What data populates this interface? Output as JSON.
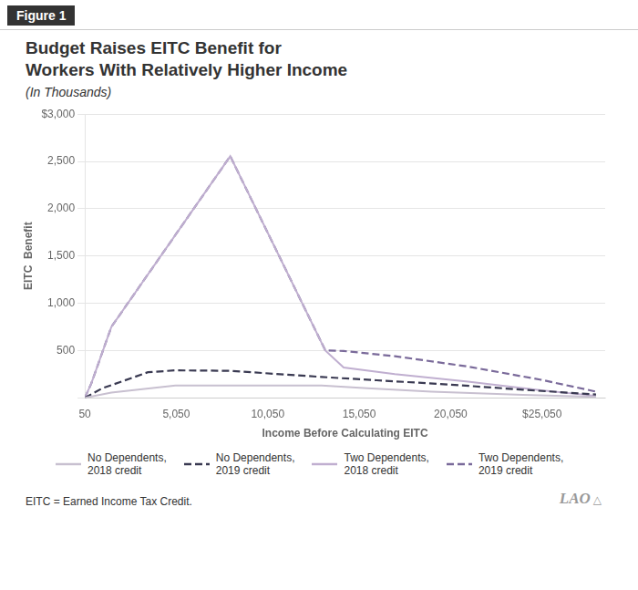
{
  "chart_data": {
    "type": "line",
    "title": "Budget Raises EITC Benefit for\nWorkers With Relatively Higher Income",
    "subtitle": "(In Thousands)",
    "xlabel": "Income Before Calculating EITC",
    "ylabel": "EITC  Benefit",
    "annotations": [
      "Figure 1",
      "EITC = Earned Income Tax Credit.",
      "LAO",
      "△"
    ],
    "xlim": [
      50,
      28500
    ],
    "ylim": [
      0,
      3000
    ],
    "xticks": [
      50,
      {
        "value": 5050,
        "label": "5,050"
      },
      {
        "value": 10050,
        "label": "10,050"
      },
      {
        "value": 15050,
        "label": "15,050"
      },
      {
        "value": 20050,
        "label": "20,050"
      },
      {
        "value": 25050,
        "label": "$25,050"
      }
    ],
    "yticks": [
      {
        "value": 0,
        "label": ""
      },
      500,
      {
        "value": 1000,
        "label": "1,000"
      },
      {
        "value": 1500,
        "label": "1,500"
      },
      {
        "value": 2000,
        "label": "2,000"
      },
      {
        "value": 2500,
        "label": "2,500"
      },
      {
        "value": 3000,
        "label": "$3,000"
      }
    ],
    "grid": "y",
    "series": [
      {
        "name": "No Dependents,\n2018 credit",
        "color": "#c8c0d0",
        "line_style": "solid",
        "marker": "none",
        "x": [
          50,
          1500,
          5000,
          8000,
          13000,
          15500,
          19000,
          24000,
          28000
        ],
        "values": [
          0,
          55,
          130,
          130,
          130,
          100,
          65,
          30,
          10
        ]
      },
      {
        "name": "No Dependents,\n2019 credit",
        "color": "#3a3a52",
        "line_style": "dashed",
        "marker": "none",
        "x": [
          50,
          1000,
          3500,
          5000,
          8000,
          13000,
          16000,
          20000,
          24000,
          28000
        ],
        "values": [
          0,
          100,
          270,
          290,
          285,
          220,
          185,
          140,
          85,
          35
        ]
      },
      {
        "name": "Two Dependents,\n2018 credit",
        "color": "#c0afd0",
        "line_style": "solid",
        "marker": "none",
        "x": [
          50,
          400,
          1500,
          8000,
          13200,
          14200,
          17000,
          21000,
          25000,
          28000
        ],
        "values": [
          0,
          150,
          750,
          2555,
          500,
          320,
          250,
          170,
          80,
          20
        ]
      },
      {
        "name": "Two Dependents,\n2019 credit",
        "color": "#7a6a9a",
        "line_style": "dashed",
        "marker": "none",
        "x": [
          50,
          400,
          1500,
          8000,
          13200,
          14200,
          17000,
          21000,
          25000,
          28000
        ],
        "values": [
          0,
          150,
          750,
          2555,
          500,
          495,
          440,
          330,
          190,
          65
        ]
      }
    ]
  }
}
